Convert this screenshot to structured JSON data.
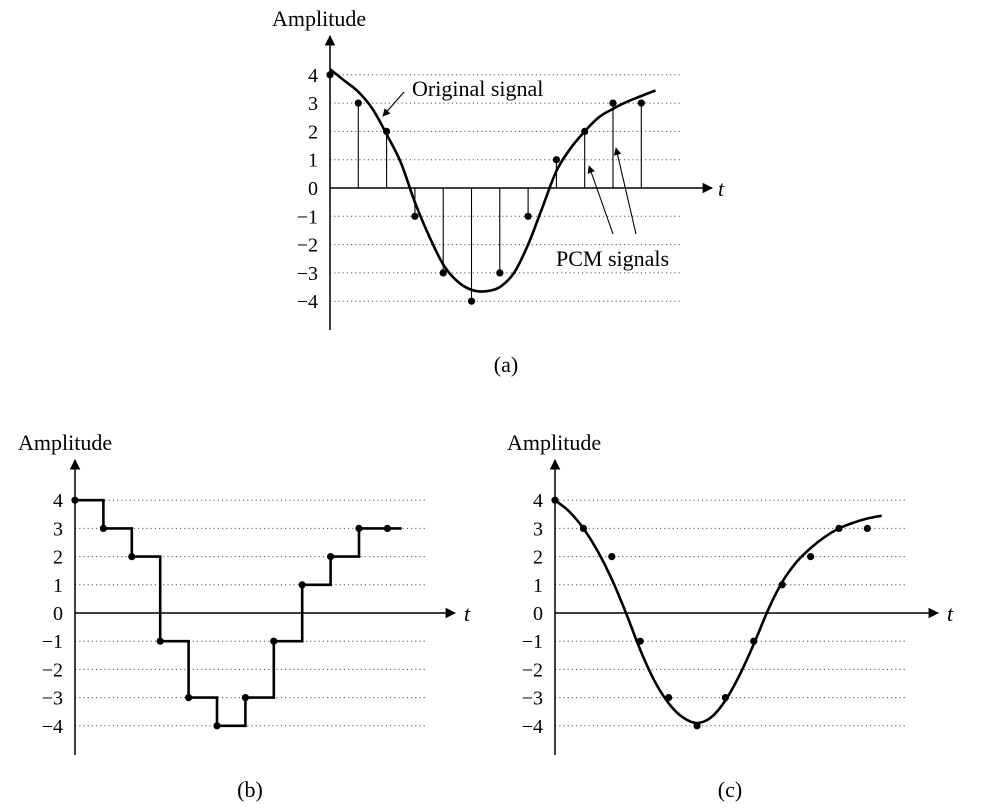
{
  "chart_data": [
    {
      "id": "a",
      "type": "line",
      "panel_label": "(a)",
      "ylabel": "Amplitude",
      "xlabel": "t",
      "yticks": [
        4,
        3,
        2,
        1,
        0,
        -1,
        -2,
        -3,
        -4
      ],
      "ylim": [
        -4,
        4
      ],
      "grid": true,
      "series": [
        {
          "name": "Original signal",
          "style": "smooth-curve",
          "x": [
            0,
            0.5,
            1,
            1.5,
            2,
            2.5,
            3,
            3.5,
            4,
            4.5,
            5,
            5.5,
            6,
            6.5,
            7,
            7.5,
            8,
            8.5,
            9,
            9.5,
            10,
            10.5,
            11,
            11.5
          ],
          "values": [
            4.2,
            3.8,
            3.4,
            2.8,
            1.9,
            0.9,
            -0.5,
            -1.7,
            -2.7,
            -3.3,
            -3.6,
            -3.65,
            -3.5,
            -3.0,
            -2.0,
            -0.7,
            0.6,
            1.4,
            2.0,
            2.5,
            2.8,
            3.05,
            3.25,
            3.45
          ]
        },
        {
          "name": "PCM signals",
          "style": "stems",
          "x": [
            0,
            1,
            2,
            3,
            4,
            5,
            6,
            7,
            8,
            9,
            10,
            11
          ],
          "values": [
            4,
            3,
            2,
            -1,
            -3,
            -4,
            -3,
            -1,
            1,
            2,
            3,
            3
          ]
        }
      ],
      "annotations": [
        "Original signal",
        "PCM signals"
      ]
    },
    {
      "id": "b",
      "type": "line",
      "panel_label": "(b)",
      "ylabel": "Amplitude",
      "xlabel": "t",
      "yticks": [
        4,
        3,
        2,
        1,
        0,
        -1,
        -2,
        -3,
        -4
      ],
      "ylim": [
        -4,
        4
      ],
      "grid": true,
      "series": [
        {
          "name": "",
          "style": "staircase",
          "x": [
            0,
            1,
            2,
            3,
            4,
            5,
            6,
            7,
            8,
            9,
            10,
            11
          ],
          "values": [
            4,
            3,
            2,
            -1,
            -3,
            -4,
            -3,
            -1,
            1,
            2,
            3,
            3
          ]
        }
      ]
    },
    {
      "id": "c",
      "type": "line",
      "panel_label": "(c)",
      "ylabel": "Amplitude",
      "xlabel": "t",
      "yticks": [
        4,
        3,
        2,
        1,
        0,
        -1,
        -2,
        -3,
        -4
      ],
      "ylim": [
        -4,
        4
      ],
      "grid": true,
      "series": [
        {
          "name": "",
          "style": "samples",
          "x": [
            0,
            1,
            2,
            3,
            4,
            5,
            6,
            7,
            8,
            9,
            10,
            11
          ],
          "values": [
            4,
            3,
            2,
            -1,
            -3,
            -4,
            -3,
            -1,
            1,
            2,
            3,
            3
          ]
        },
        {
          "name": "",
          "style": "smooth-curve",
          "x": [
            0,
            0.5,
            1,
            1.5,
            2,
            2.5,
            3,
            3.5,
            4,
            4.5,
            5,
            5.5,
            6,
            6.5,
            7,
            7.5,
            8,
            8.5,
            9,
            9.5,
            10,
            10.5,
            11,
            11.5
          ],
          "values": [
            4.0,
            3.6,
            3.0,
            2.2,
            1.2,
            0.0,
            -1.3,
            -2.4,
            -3.2,
            -3.7,
            -3.9,
            -3.7,
            -3.1,
            -2.2,
            -1.1,
            0.1,
            1.1,
            1.8,
            2.3,
            2.7,
            3.0,
            3.2,
            3.35,
            3.45
          ]
        }
      ]
    }
  ]
}
